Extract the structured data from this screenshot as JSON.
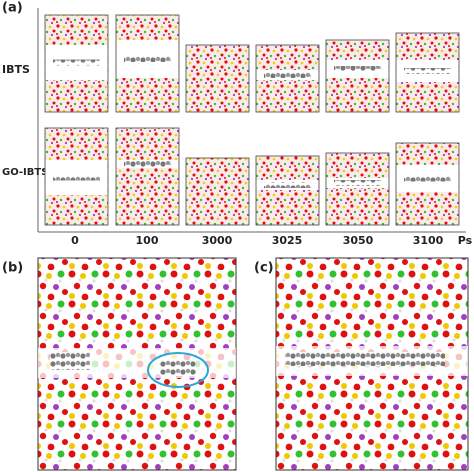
{
  "panels": {
    "a": {
      "label": "(a)",
      "row_labels": [
        "IBTS",
        "GO-IBTS"
      ],
      "time_labels": [
        "0",
        "100",
        "3000",
        "3025",
        "3050",
        "3100"
      ],
      "unit": "Ps"
    },
    "b": {
      "label": "(b)"
    },
    "c": {
      "label": "(c)"
    }
  }
}
